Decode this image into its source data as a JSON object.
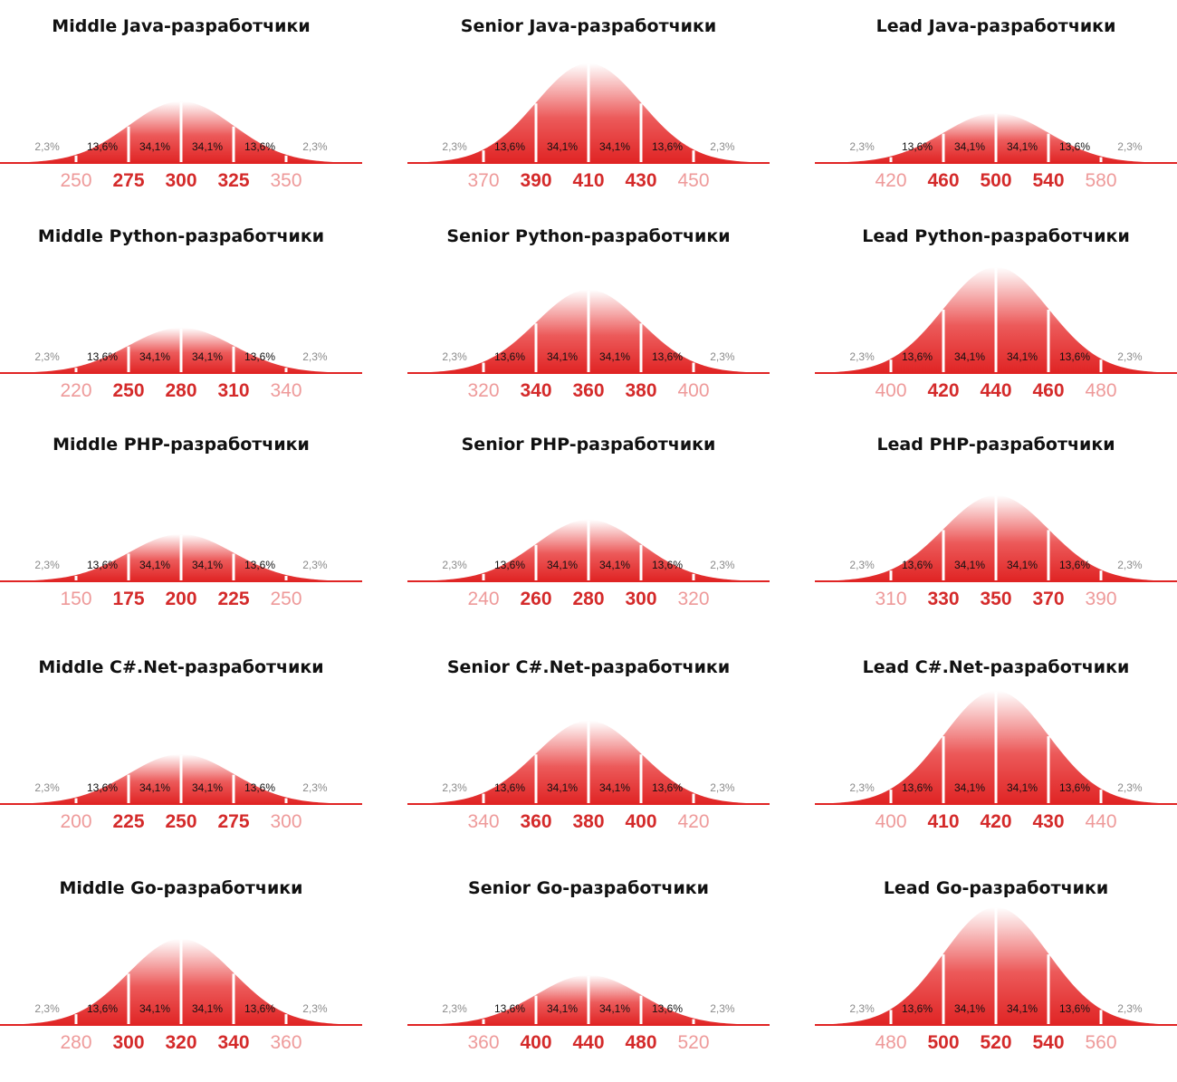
{
  "colors": {
    "accent": "#e02424",
    "accent_dark": "#c41a1a",
    "tick_strong": "#d42a2a",
    "tick_light": "#ee9a9a",
    "pct_outer": "#8a8a8a",
    "pct_inner": "#111111"
  },
  "chart_data": [
    {
      "type": "area",
      "title": "Middle Java-разработчики",
      "x": [
        250,
        275,
        300,
        325,
        350
      ],
      "percents": [
        "2,3%",
        "13,6%",
        "34,1%",
        "34,1%",
        "13,6%",
        "2,3%"
      ]
    },
    {
      "type": "area",
      "title": "Senior Java-разработчики",
      "x": [
        370,
        390,
        410,
        430,
        450
      ],
      "percents": [
        "2,3%",
        "13,6%",
        "34,1%",
        "34,1%",
        "13,6%",
        "2,3%"
      ]
    },
    {
      "type": "area",
      "title": "Lead Java-разработчики",
      "x": [
        420,
        460,
        500,
        540,
        580
      ],
      "percents": [
        "2,3%",
        "13,6%",
        "34,1%",
        "34,1%",
        "13,6%",
        "2,3%"
      ]
    },
    {
      "type": "area",
      "title": "Middle Python-разработчики",
      "x": [
        220,
        250,
        280,
        310,
        340
      ],
      "percents": [
        "2,3%",
        "13,6%",
        "34,1%",
        "34,1%",
        "13,6%",
        "2,3%"
      ]
    },
    {
      "type": "area",
      "title": "Senior Python-разработчики",
      "x": [
        320,
        340,
        360,
        380,
        400
      ],
      "percents": [
        "2,3%",
        "13,6%",
        "34,1%",
        "34,1%",
        "13,6%",
        "2,3%"
      ]
    },
    {
      "type": "area",
      "title": "Lead Python-разработчики",
      "x": [
        400,
        420,
        440,
        460,
        480
      ],
      "percents": [
        "2,3%",
        "13,6%",
        "34,1%",
        "34,1%",
        "13,6%",
        "2,3%"
      ]
    },
    {
      "type": "area",
      "title": "Middle PHP-разработчики",
      "x": [
        150,
        175,
        200,
        225,
        250
      ],
      "percents": [
        "2,3%",
        "13,6%",
        "34,1%",
        "34,1%",
        "13,6%",
        "2,3%"
      ]
    },
    {
      "type": "area",
      "title": "Senior PHP-разработчики",
      "x": [
        240,
        260,
        280,
        300,
        320
      ],
      "percents": [
        "2,3%",
        "13,6%",
        "34,1%",
        "34,1%",
        "13,6%",
        "2,3%"
      ]
    },
    {
      "type": "area",
      "title": "Lead PHP-разработчики",
      "x": [
        310,
        330,
        350,
        370,
        390
      ],
      "percents": [
        "2,3%",
        "13,6%",
        "34,1%",
        "34,1%",
        "13,6%",
        "2,3%"
      ]
    },
    {
      "type": "area",
      "title": "Middle C#.Net-разработчики",
      "x": [
        200,
        225,
        250,
        275,
        300
      ],
      "percents": [
        "2,3%",
        "13,6%",
        "34,1%",
        "34,1%",
        "13,6%",
        "2,3%"
      ]
    },
    {
      "type": "area",
      "title": "Senior C#.Net-разработчики",
      "x": [
        340,
        360,
        380,
        400,
        420
      ],
      "percents": [
        "2,3%",
        "13,6%",
        "34,1%",
        "34,1%",
        "13,6%",
        "2,3%"
      ]
    },
    {
      "type": "area",
      "title": "Lead C#.Net-разработчики",
      "x": [
        400,
        410,
        420,
        430,
        440
      ],
      "percents": [
        "2,3%",
        "13,6%",
        "34,1%",
        "34,1%",
        "13,6%",
        "2,3%"
      ]
    },
    {
      "type": "area",
      "title": "Middle Go-разработчики",
      "x": [
        280,
        300,
        320,
        340,
        360
      ],
      "percents": [
        "2,3%",
        "13,6%",
        "34,1%",
        "34,1%",
        "13,6%",
        "2,3%"
      ]
    },
    {
      "type": "area",
      "title": "Senior Go-разработчики",
      "x": [
        360,
        400,
        440,
        480,
        520
      ],
      "percents": [
        "2,3%",
        "13,6%",
        "34,1%",
        "34,1%",
        "13,6%",
        "2,3%"
      ]
    },
    {
      "type": "area",
      "title": "Lead Go-разработчики",
      "x": [
        480,
        500,
        520,
        540,
        560
      ],
      "percents": [
        "2,3%",
        "13,6%",
        "34,1%",
        "34,1%",
        "13,6%",
        "2,3%"
      ]
    }
  ]
}
